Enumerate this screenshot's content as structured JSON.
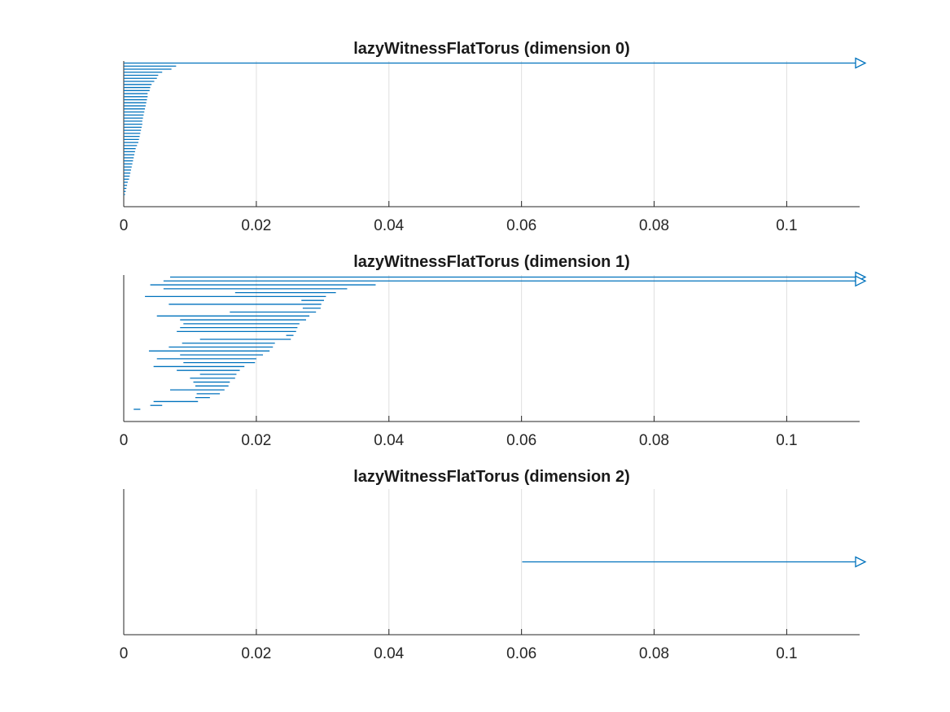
{
  "chart_data": [
    {
      "type": "barcode",
      "title": "lazyWitnessFlatTorus (dimension 0)",
      "xlabel": "",
      "ylabel": "",
      "xlim": [
        0,
        0.111
      ],
      "xticks": [
        0,
        0.02,
        0.04,
        0.06,
        0.08,
        0.1
      ],
      "xtick_labels": [
        "0",
        "0.02",
        "0.04",
        "0.06",
        "0.08",
        "0.1"
      ],
      "grid": "x",
      "color": "#0072bd",
      "infinite_bars": [
        {
          "start": 0
        }
      ],
      "bars": [
        {
          "start": 0,
          "end": 0.0079
        },
        {
          "start": 0,
          "end": 0.0072
        },
        {
          "start": 0,
          "end": 0.0058
        },
        {
          "start": 0,
          "end": 0.0052
        },
        {
          "start": 0,
          "end": 0.005
        },
        {
          "start": 0,
          "end": 0.0046
        },
        {
          "start": 0,
          "end": 0.0042
        },
        {
          "start": 0,
          "end": 0.004
        },
        {
          "start": 0,
          "end": 0.0039
        },
        {
          "start": 0,
          "end": 0.0036
        },
        {
          "start": 0,
          "end": 0.0036
        },
        {
          "start": 0,
          "end": 0.0035
        },
        {
          "start": 0,
          "end": 0.0034
        },
        {
          "start": 0,
          "end": 0.0033
        },
        {
          "start": 0,
          "end": 0.0032
        },
        {
          "start": 0,
          "end": 0.0031
        },
        {
          "start": 0,
          "end": 0.003
        },
        {
          "start": 0,
          "end": 0.0029
        },
        {
          "start": 0,
          "end": 0.0028
        },
        {
          "start": 0,
          "end": 0.0028
        },
        {
          "start": 0,
          "end": 0.0027
        },
        {
          "start": 0,
          "end": 0.0026
        },
        {
          "start": 0,
          "end": 0.0025
        },
        {
          "start": 0,
          "end": 0.0024
        },
        {
          "start": 0,
          "end": 0.0023
        },
        {
          "start": 0,
          "end": 0.0022
        },
        {
          "start": 0,
          "end": 0.002
        },
        {
          "start": 0,
          "end": 0.0018
        },
        {
          "start": 0,
          "end": 0.0017
        },
        {
          "start": 0,
          "end": 0.0016
        },
        {
          "start": 0,
          "end": 0.0015
        },
        {
          "start": 0,
          "end": 0.0014
        },
        {
          "start": 0,
          "end": 0.0013
        },
        {
          "start": 0,
          "end": 0.0012
        },
        {
          "start": 0,
          "end": 0.0011
        },
        {
          "start": 0,
          "end": 0.001
        },
        {
          "start": 0,
          "end": 0.0009
        },
        {
          "start": 0,
          "end": 0.0008
        },
        {
          "start": 0,
          "end": 0.0006
        },
        {
          "start": 0,
          "end": 0.0005
        },
        {
          "start": 0,
          "end": 0.0004
        },
        {
          "start": 0,
          "end": 0.0003
        },
        {
          "start": 0,
          "end": 0.0002
        }
      ]
    },
    {
      "type": "barcode",
      "title": "lazyWitnessFlatTorus (dimension 1)",
      "xlabel": "",
      "ylabel": "",
      "xlim": [
        0,
        0.111
      ],
      "xticks": [
        0,
        0.02,
        0.04,
        0.06,
        0.08,
        0.1
      ],
      "xtick_labels": [
        "0",
        "0.02",
        "0.04",
        "0.06",
        "0.08",
        "0.1"
      ],
      "grid": "x",
      "color": "#0072bd",
      "infinite_bars": [
        {
          "start": 0.007
        },
        {
          "start": 0.006
        }
      ],
      "bars": [
        {
          "start": 0.004,
          "end": 0.038
        },
        {
          "start": 0.006,
          "end": 0.0337
        },
        {
          "start": 0.0168,
          "end": 0.032
        },
        {
          "start": 0.0032,
          "end": 0.0305
        },
        {
          "start": 0.0268,
          "end": 0.0302
        },
        {
          "start": 0.0068,
          "end": 0.0298
        },
        {
          "start": 0.027,
          "end": 0.0297
        },
        {
          "start": 0.016,
          "end": 0.029
        },
        {
          "start": 0.005,
          "end": 0.028
        },
        {
          "start": 0.0085,
          "end": 0.0275
        },
        {
          "start": 0.009,
          "end": 0.0265
        },
        {
          "start": 0.0085,
          "end": 0.0262
        },
        {
          "start": 0.008,
          "end": 0.026
        },
        {
          "start": 0.0245,
          "end": 0.0256
        },
        {
          "start": 0.0115,
          "end": 0.0252
        },
        {
          "start": 0.0088,
          "end": 0.0228
        },
        {
          "start": 0.0068,
          "end": 0.0225
        },
        {
          "start": 0.0038,
          "end": 0.022
        },
        {
          "start": 0.0085,
          "end": 0.021
        },
        {
          "start": 0.005,
          "end": 0.02
        },
        {
          "start": 0.009,
          "end": 0.0198
        },
        {
          "start": 0.0045,
          "end": 0.0182
        },
        {
          "start": 0.008,
          "end": 0.0175
        },
        {
          "start": 0.0115,
          "end": 0.017
        },
        {
          "start": 0.01,
          "end": 0.0168
        },
        {
          "start": 0.0105,
          "end": 0.016
        },
        {
          "start": 0.0108,
          "end": 0.0158
        },
        {
          "start": 0.007,
          "end": 0.0152
        },
        {
          "start": 0.011,
          "end": 0.0145
        },
        {
          "start": 0.0108,
          "end": 0.013
        },
        {
          "start": 0.0045,
          "end": 0.0112
        },
        {
          "start": 0.004,
          "end": 0.0058
        },
        {
          "start": 0.0015,
          "end": 0.0025
        }
      ]
    },
    {
      "type": "barcode",
      "title": "lazyWitnessFlatTorus (dimension 2)",
      "xlabel": "",
      "ylabel": "",
      "xlim": [
        0,
        0.111
      ],
      "xticks": [
        0,
        0.02,
        0.04,
        0.06,
        0.08,
        0.1
      ],
      "xtick_labels": [
        "0",
        "0.02",
        "0.04",
        "0.06",
        "0.08",
        "0.1"
      ],
      "grid": "x",
      "color": "#0072bd",
      "infinite_bars": [
        {
          "start": 0.0601
        }
      ],
      "bars": []
    }
  ]
}
